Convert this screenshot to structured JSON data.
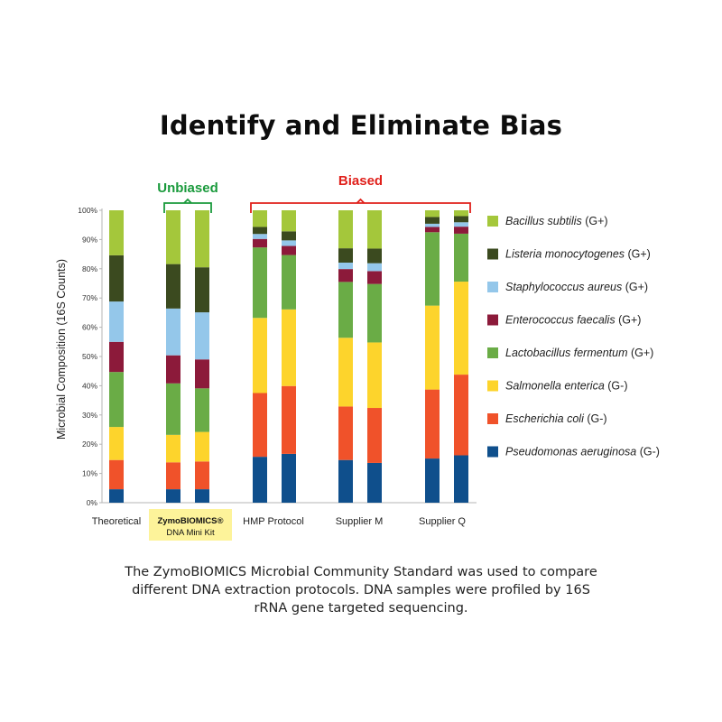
{
  "title": "Identify and Eliminate Bias",
  "caption": {
    "line1": "The ZymoBIOMICS Microbial Community Standard was used to compare",
    "line2": "different DNA extraction protocols. DNA samples were profiled by 16S",
    "line3": "rRNA gene targeted sequencing."
  },
  "colors": {
    "unbiased": "#1a9a3c",
    "biased": "#e0201b",
    "highlight": "#fdf39a"
  },
  "chart_data": {
    "type": "bar",
    "stacked": true,
    "ylabel": "Microbial Composition (16S Counts)",
    "ylim": [
      0,
      100
    ],
    "yticks": [
      "0%",
      "10%",
      "20%",
      "30%",
      "40%",
      "50%",
      "60%",
      "70%",
      "80%",
      "90%",
      "100%"
    ],
    "grid": false,
    "legend_position": "right",
    "groups": [
      {
        "label": "Theoretical",
        "bars": 1,
        "highlight": false
      },
      {
        "label_line1": "ZymoBIOMICS®",
        "label_line2": "DNA Mini Kit",
        "bars": 2,
        "highlight": true
      },
      {
        "label": "HMP Protocol",
        "bars": 2,
        "highlight": false
      },
      {
        "label": "Supplier M",
        "bars": 2,
        "highlight": false
      },
      {
        "label": "Supplier Q",
        "bars": 2,
        "highlight": false
      }
    ],
    "annotations": [
      {
        "text": "Unbiased",
        "bars": [
          1,
          2
        ]
      },
      {
        "text": "Biased",
        "bars": [
          3,
          8
        ]
      }
    ],
    "series": [
      {
        "name": "Pseudomonas aeruginosa",
        "tag": "(G-)",
        "color": "#0f4f8c",
        "values": [
          4.6,
          4.6,
          4.6,
          15.7,
          16.7,
          14.6,
          13.6,
          15.1,
          16.2
        ]
      },
      {
        "name": "Escherichia coli",
        "tag": " (G-)",
        "color": "#f0522a",
        "values": [
          10.0,
          9.2,
          9.5,
          21.8,
          23.2,
          18.3,
          18.8,
          23.6,
          27.6
        ]
      },
      {
        "name": "Salmonella enterica",
        "tag": "(G-)",
        "color": "#fdd42c",
        "values": [
          11.3,
          9.4,
          10.1,
          25.7,
          26.2,
          23.5,
          22.4,
          28.7,
          31.8
        ]
      },
      {
        "name": "Lactobacillus fermentum",
        "tag": "(G+)",
        "color": "#6aac46",
        "values": [
          18.8,
          17.6,
          14.9,
          24.1,
          18.6,
          19.1,
          20.0,
          25.1,
          16.4
        ]
      },
      {
        "name": "Enterococcus faecalis",
        "tag": "(G+)",
        "color": "#8c1a3a",
        "values": [
          10.3,
          9.6,
          9.9,
          2.9,
          3.1,
          4.4,
          4.4,
          1.8,
          2.4
        ]
      },
      {
        "name": "Staphylococcus aureus",
        "tag": "(G+)",
        "color": "#94c7ea",
        "values": [
          13.8,
          16.0,
          16.1,
          1.7,
          1.9,
          2.2,
          2.7,
          1.1,
          1.5
        ]
      },
      {
        "name": "Listeria monocytogenes",
        "tag": "(G+)",
        "color": "#3b4a1f",
        "values": [
          15.8,
          15.2,
          15.4,
          2.4,
          3.1,
          4.9,
          5.0,
          2.3,
          2.1
        ]
      },
      {
        "name": "Bacillus subtilis",
        "tag": "(G+)",
        "color": "#a4c73b",
        "values": [
          15.4,
          18.4,
          19.5,
          5.7,
          7.2,
          13.0,
          13.1,
          2.3,
          2.0
        ]
      }
    ]
  }
}
